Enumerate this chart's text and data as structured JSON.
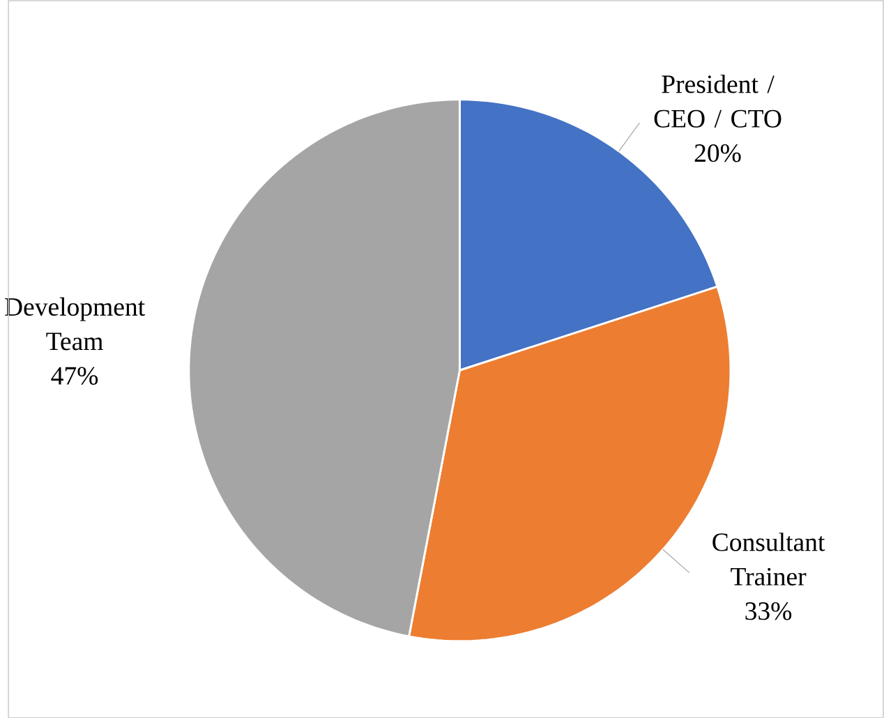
{
  "chart_data": {
    "type": "pie",
    "categories": [
      "President / CEO / CTO",
      "Consultant Trainer",
      "Development Team"
    ],
    "values": [
      20,
      33,
      47
    ],
    "value_labels": [
      "20%",
      "33%",
      "47%"
    ],
    "colors": [
      "#4472c4",
      "#ed7d31",
      "#a5a5a5"
    ]
  }
}
